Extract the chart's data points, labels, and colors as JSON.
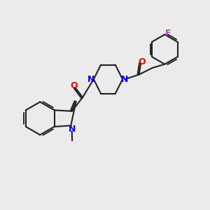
{
  "bg_color": "#ebebeb",
  "bond_color": "#212121",
  "N_color": "#0000ee",
  "O_color": "#ee0000",
  "F_color": "#bb44bb",
  "lw": 1.5,
  "fig_size": [
    3.0,
    3.0
  ],
  "dpi": 100,
  "xlim": [
    0,
    10
  ],
  "ylim": [
    0,
    10
  ]
}
